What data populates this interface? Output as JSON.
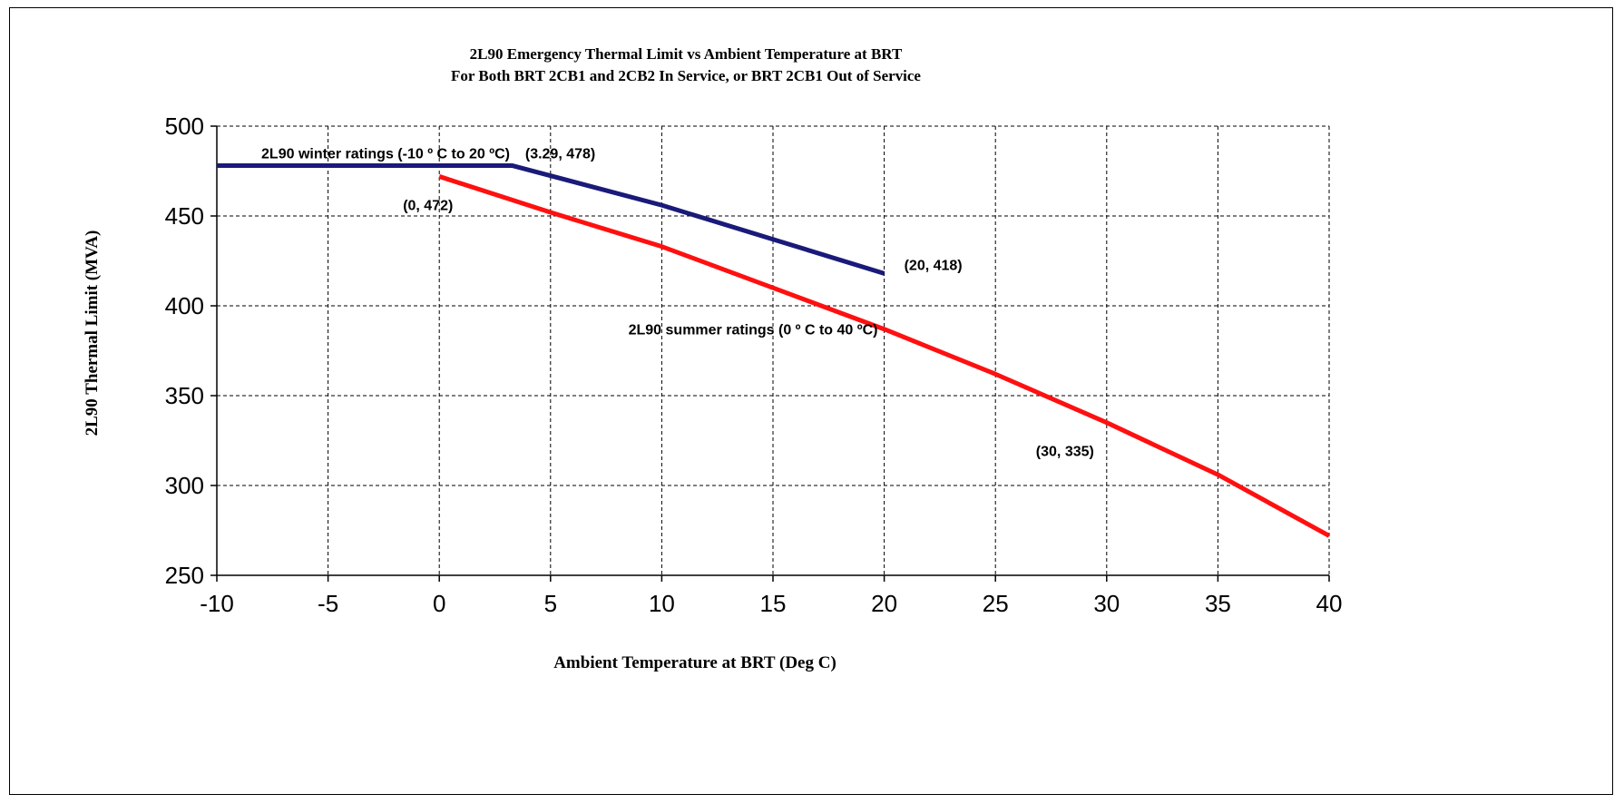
{
  "chart_data": {
    "type": "line",
    "title": "2L90 Emergency Thermal Limit vs Ambient Temperature at BRT",
    "subtitle": "For Both BRT 2CB1 and 2CB2 In Service, or BRT 2CB1 Out of Service",
    "xlabel": "Ambient  Temperature  at BRT (Deg C)",
    "ylabel": "2L90 Thermal  Limit (MVA)",
    "xlim": [
      -10,
      40
    ],
    "ylim": [
      250,
      500
    ],
    "xticks": [
      -10,
      -5,
      0,
      5,
      10,
      15,
      20,
      25,
      30,
      35,
      40
    ],
    "yticks": [
      250,
      300,
      350,
      400,
      450,
      500
    ],
    "grid": true,
    "series": [
      {
        "name": "2L90 winter ratings (-10 º C to 20 ºC)",
        "color": "#1a1a7a",
        "x": [
          -10,
          3.29,
          10,
          15,
          20
        ],
        "y": [
          478,
          478,
          456,
          437,
          418
        ]
      },
      {
        "name": "2L90 summer ratings (0 º C to 40 ºC)",
        "color": "#ff1010",
        "x": [
          0,
          5,
          10,
          15,
          20,
          25,
          30,
          35,
          40
        ],
        "y": [
          472,
          452,
          433,
          410,
          387,
          362,
          335,
          306,
          272
        ]
      }
    ],
    "annotations": [
      {
        "text": "(3.29, 478)",
        "x": 3.29,
        "y": 478
      },
      {
        "text": "(0, 472)",
        "x": 0,
        "y": 472
      },
      {
        "text": "(20, 418)",
        "x": 20,
        "y": 418
      },
      {
        "text": "(30, 335)",
        "x": 30,
        "y": 335
      }
    ]
  }
}
